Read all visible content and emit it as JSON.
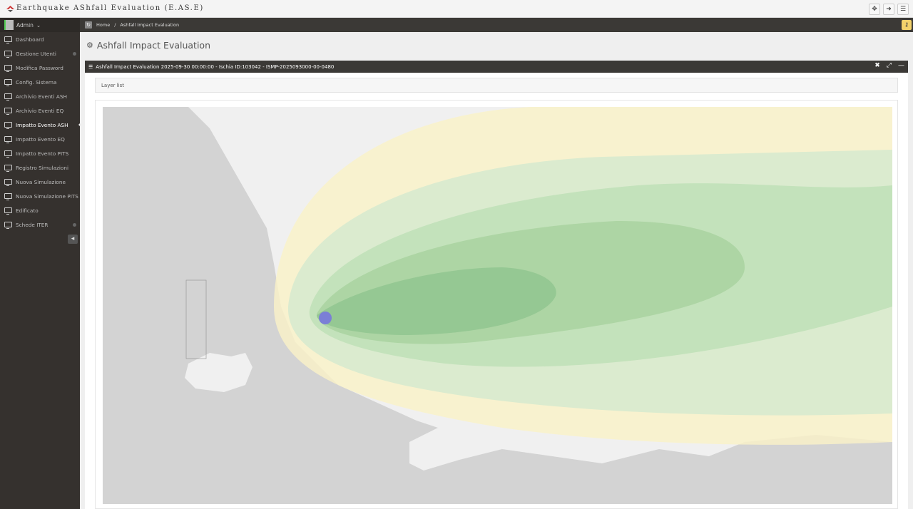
{
  "app": {
    "title": "Earthquake AShfall Evaluation (E.AS.E)"
  },
  "topbar": {
    "icons": [
      "fullscreen-icon",
      "logout-icon",
      "menu-icon"
    ]
  },
  "user": {
    "name": "Admin"
  },
  "sidebar": {
    "items": [
      {
        "label": "Dashboard",
        "icon": "monitor-icon"
      },
      {
        "label": "Gestione Utenti",
        "icon": "user-icon",
        "expandable": true
      },
      {
        "label": "Modifica Password",
        "icon": "lock-icon"
      },
      {
        "label": "Config. Sistema",
        "icon": "monitor-icon"
      },
      {
        "label": "Archivio Eventi ASH",
        "icon": "monitor-icon"
      },
      {
        "label": "Archivio Eventi EQ",
        "icon": "monitor-icon"
      },
      {
        "label": "Impatto Evento ASH",
        "icon": "monitor-icon",
        "active": true
      },
      {
        "label": "Impatto Evento EQ",
        "icon": "monitor-icon"
      },
      {
        "label": "Impatto Evento PITS",
        "icon": "monitor-icon"
      },
      {
        "label": "Registro Simulazioni",
        "icon": "monitor-icon"
      },
      {
        "label": "Nuova Simulazione",
        "icon": "monitor-icon"
      },
      {
        "label": "Nuova Simulazione PITS",
        "icon": "monitor-icon"
      },
      {
        "label": "Edificato",
        "icon": "monitor-icon"
      },
      {
        "label": "Schede ITER",
        "icon": "monitor-icon",
        "expandable": true
      }
    ]
  },
  "breadcrumb": {
    "home": "Home",
    "sep": "/",
    "current": "Ashfall Impact Evaluation"
  },
  "page": {
    "title": "Ashfall Impact Evaluation"
  },
  "panel": {
    "title": "Ashfall Impact Evaluation 2025-09-30 00:00:00 - Ischia ID:103042 - ISMP-2025093000-00-0480",
    "layer_list": "Layer list"
  },
  "map": {
    "colors": {
      "sea": "#d3d3d3",
      "land": "#f0f0f0",
      "ash_outer": "#fbf3c8",
      "ash_1": "#d6ebc8",
      "ash_2": "#b9dfae",
      "ash_3": "#9dcf92",
      "ash_4": "#7fbf7c",
      "vent": "#7b7fd6"
    }
  }
}
